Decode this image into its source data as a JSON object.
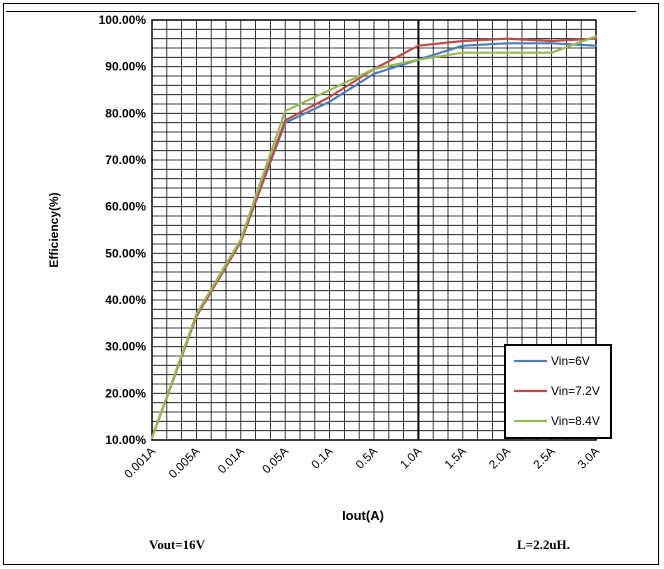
{
  "chart_data": {
    "type": "line",
    "title": "",
    "xlabel": "Iout(A)",
    "ylabel": "Efficiency(%)",
    "categories": [
      "0.001A",
      "0.005A",
      "0.01A",
      "0.05A",
      "0.1A",
      "0.5A",
      "1.0A",
      "1.5A",
      "2.0A",
      "2.5A",
      "3.0A"
    ],
    "y_ticks": [
      "10.00%",
      "20.00%",
      "30.00%",
      "40.00%",
      "50.00%",
      "60.00%",
      "70.00%",
      "80.00%",
      "90.00%",
      "100.00%"
    ],
    "ylim": [
      10,
      100
    ],
    "grid": true,
    "legend_position": "bottom-right",
    "series": [
      {
        "name": "Vin=6V",
        "color": "#4a7ebb",
        "values": [
          10.5,
          36.5,
          52.5,
          78.0,
          82.5,
          88.5,
          91.5,
          94.5,
          95.0,
          95.0,
          94.5
        ]
      },
      {
        "name": "Vin=7.2V",
        "color": "#be4b48",
        "values": [
          10.5,
          36.5,
          52.5,
          78.5,
          83.5,
          89.5,
          94.5,
          95.5,
          96.0,
          95.5,
          96.0
        ]
      },
      {
        "name": "Vin=8.4V",
        "color": "#98b954",
        "values": [
          10.5,
          37.0,
          53.0,
          80.5,
          85.0,
          89.5,
          91.5,
          93.0,
          93.0,
          93.0,
          96.5
        ]
      }
    ]
  },
  "footer": {
    "left": "Vout=16V",
    "right": "L=2.2uH."
  }
}
